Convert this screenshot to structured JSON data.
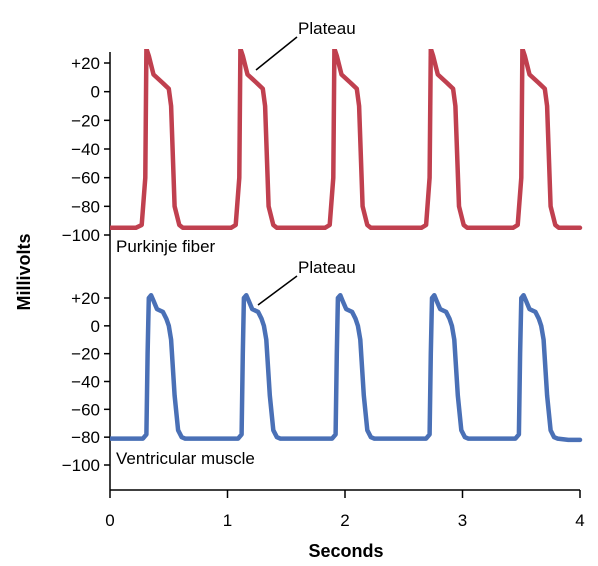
{
  "chart_data": [
    {
      "type": "line",
      "xlabel": "Seconds",
      "ylabel": "Millivolts",
      "xlim": [
        0,
        4
      ],
      "x_ticks": [
        "0",
        "1",
        "2",
        "3",
        "4"
      ],
      "ylim": [
        -100,
        20
      ],
      "y_ticks": [
        "+20",
        "0",
        "−20",
        "−40",
        "−60",
        "−80",
        "−100"
      ],
      "label": "Purkinje fiber",
      "annotation": "Plateau",
      "color": "#c0404f",
      "grid": false,
      "series": [
        {
          "x": [
            0.0,
            0.22,
            0.27,
            0.3,
            0.31,
            0.33,
            0.37,
            0.45,
            0.5,
            0.52,
            0.55,
            0.59,
            0.62,
            0.67,
            1.03,
            1.07,
            1.1,
            1.11,
            1.13,
            1.17,
            1.25,
            1.3,
            1.32,
            1.35,
            1.39,
            1.42,
            1.47,
            1.83,
            1.87,
            1.9,
            1.91,
            1.93,
            1.97,
            2.05,
            2.1,
            2.12,
            2.15,
            2.19,
            2.22,
            2.27,
            2.65,
            2.69,
            2.72,
            2.73,
            2.75,
            2.79,
            2.87,
            2.92,
            2.94,
            2.97,
            3.01,
            3.04,
            3.09,
            3.43,
            3.47,
            3.5,
            3.51,
            3.53,
            3.57,
            3.65,
            3.7,
            3.72,
            3.75,
            3.79,
            3.82,
            3.87,
            4.0
          ],
          "y": [
            -95,
            -95,
            -93,
            -60,
            30,
            25,
            12,
            6,
            2,
            -10,
            -80,
            -93,
            -95,
            -95,
            -95,
            -93,
            -60,
            30,
            25,
            12,
            6,
            2,
            -10,
            -80,
            -93,
            -95,
            -95,
            -95,
            -93,
            -60,
            30,
            25,
            12,
            6,
            2,
            -10,
            -80,
            -93,
            -95,
            -95,
            -95,
            -93,
            -60,
            30,
            25,
            12,
            6,
            2,
            -10,
            -80,
            -93,
            -95,
            -95,
            -95,
            -93,
            -60,
            30,
            25,
            12,
            6,
            2,
            -10,
            -80,
            -93,
            -95,
            -95,
            -95
          ]
        }
      ]
    },
    {
      "type": "line",
      "xlabel": "Seconds",
      "ylabel": "Millivolts",
      "xlim": [
        0,
        4
      ],
      "x_ticks": [
        "0",
        "1",
        "2",
        "3",
        "4"
      ],
      "ylim": [
        -100,
        20
      ],
      "y_ticks": [
        "+20",
        "0",
        "−20",
        "−40",
        "−60",
        "−80",
        "−100"
      ],
      "label": "Ventricular muscle",
      "annotation": "Plateau",
      "color": "#4a70b6",
      "grid": false,
      "series": [
        {
          "x": [
            0.0,
            0.28,
            0.31,
            0.32,
            0.33,
            0.35,
            0.37,
            0.4,
            0.45,
            0.48,
            0.5,
            0.52,
            0.55,
            0.58,
            0.61,
            0.64,
            1.09,
            1.12,
            1.13,
            1.14,
            1.16,
            1.18,
            1.21,
            1.26,
            1.29,
            1.31,
            1.33,
            1.36,
            1.39,
            1.42,
            1.45,
            1.89,
            1.92,
            1.93,
            1.94,
            1.96,
            1.98,
            2.01,
            2.06,
            2.09,
            2.11,
            2.13,
            2.16,
            2.19,
            2.22,
            2.25,
            2.69,
            2.72,
            2.73,
            2.74,
            2.76,
            2.78,
            2.81,
            2.86,
            2.89,
            2.91,
            2.93,
            2.96,
            2.99,
            3.02,
            3.05,
            3.45,
            3.48,
            3.49,
            3.5,
            3.52,
            3.54,
            3.57,
            3.62,
            3.65,
            3.67,
            3.69,
            3.72,
            3.75,
            3.78,
            3.81,
            3.9,
            4.0
          ],
          "y": [
            -81,
            -81,
            -78,
            -20,
            20,
            22,
            18,
            12,
            10,
            5,
            0,
            -10,
            -50,
            -75,
            -80,
            -81,
            -81,
            -78,
            -20,
            20,
            22,
            18,
            12,
            10,
            5,
            0,
            -10,
            -50,
            -75,
            -80,
            -81,
            -81,
            -78,
            -20,
            20,
            22,
            18,
            12,
            10,
            5,
            0,
            -10,
            -50,
            -75,
            -80,
            -81,
            -81,
            -78,
            -20,
            20,
            22,
            18,
            12,
            10,
            5,
            0,
            -10,
            -50,
            -75,
            -80,
            -81,
            -81,
            -78,
            -20,
            20,
            22,
            18,
            12,
            10,
            5,
            0,
            -10,
            -50,
            -75,
            -80,
            -81,
            -82,
            -82
          ]
        }
      ]
    }
  ]
}
